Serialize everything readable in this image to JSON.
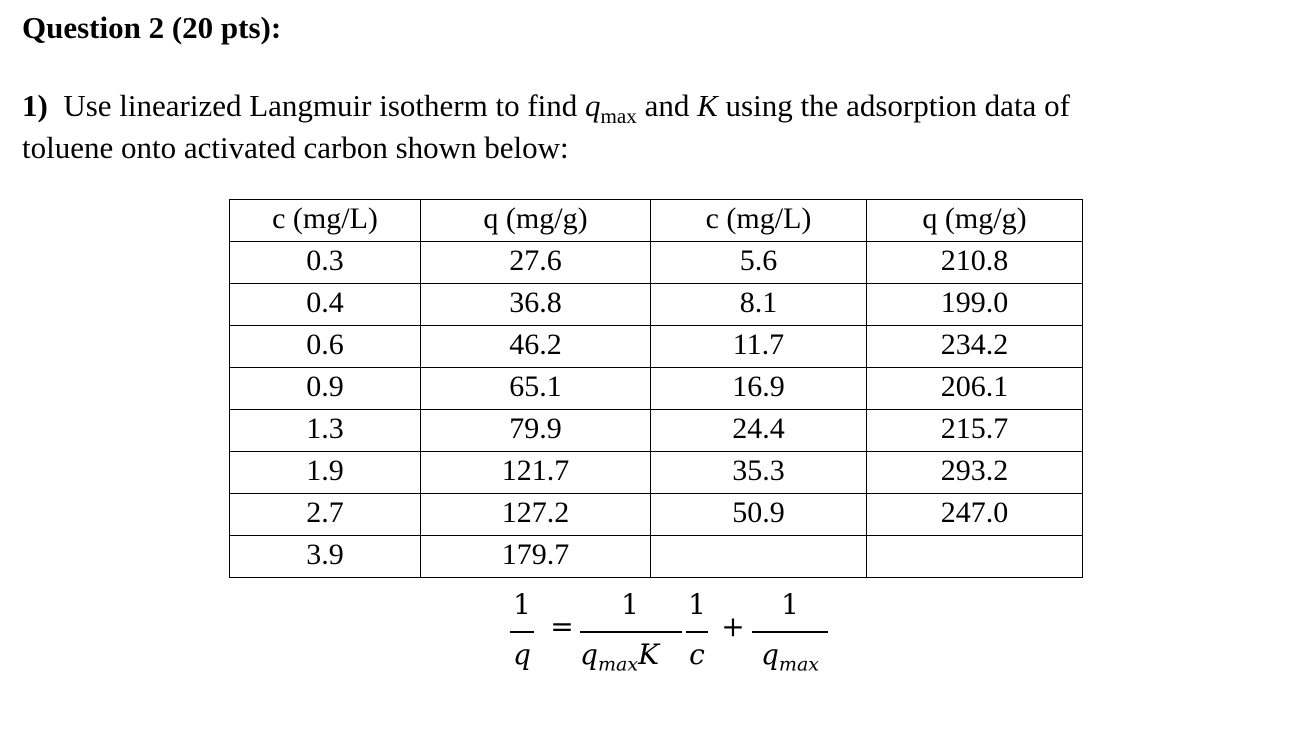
{
  "header": {
    "title": "Question 2 (20 pts):"
  },
  "question": {
    "number": "1)",
    "text_a": "Use linearized Langmuir isotherm to find",
    "q": "q",
    "q_sub": "max",
    "text_b": "and",
    "k": "K",
    "text_c": "using the adsorption data of",
    "text_d": "toluene onto activated carbon shown below:"
  },
  "table": {
    "headers": [
      "c (mg/L)",
      "q (mg/g)",
      "c (mg/L)",
      "q (mg/g)"
    ],
    "rows": [
      [
        "0.3",
        "27.6",
        "5.6",
        "210.8"
      ],
      [
        "0.4",
        "36.8",
        "8.1",
        "199.0"
      ],
      [
        "0.6",
        "46.2",
        "11.7",
        "234.2"
      ],
      [
        "0.9",
        "65.1",
        "16.9",
        "206.1"
      ],
      [
        "1.3",
        "79.9",
        "24.4",
        "215.7"
      ],
      [
        "1.9",
        "121.7",
        "35.3",
        "293.2"
      ],
      [
        "2.7",
        "127.2",
        "50.9",
        "247.0"
      ],
      [
        "3.9",
        "179.7",
        null,
        null
      ]
    ]
  },
  "equation": {
    "lhs_num": "1",
    "lhs_den": "q",
    "equals": "=",
    "f1_num": "1",
    "f1_den_q": "q",
    "f1_den_sub": "max",
    "f1_den_k": "K",
    "f2_num": "1",
    "f2_den": "c",
    "plus": "+",
    "f3_num": "1",
    "f3_den_q": "q",
    "f3_den_sub": "max"
  }
}
